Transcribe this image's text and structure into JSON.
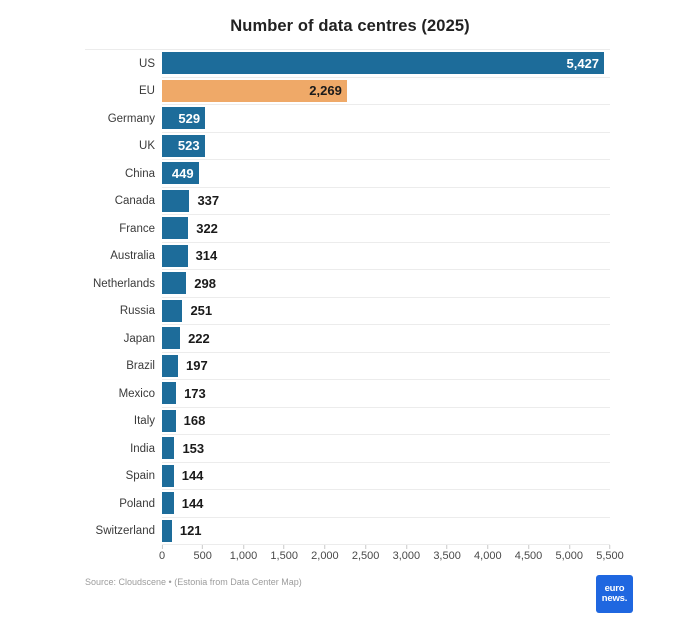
{
  "title": "Number of data centres (2025)",
  "footer": {
    "source": "Source: Cloudscene • (Estonia from Data Center Map)",
    "logo": {
      "line1": "euro",
      "line2": "news.",
      "bg_color": "#1f67e0",
      "text_color": "#ffffff"
    }
  },
  "colors": {
    "bar_default": "#1d6c9a",
    "bar_highlight": "#efa968",
    "inside_label_on_blue": "#ffffff",
    "inside_label_on_orange": "#1a1a1a",
    "outside_label": "#1a1a1a",
    "gridline": "#ececec",
    "tick_mark": "#c9c9c9",
    "axis_text": "#494949",
    "category_text": "#3a3a3a",
    "title_text": "#222222",
    "source_text": "#9c9c9c"
  },
  "chart_data": {
    "type": "bar",
    "orientation": "horizontal",
    "title": "Number of data centres (2025)",
    "categories": [
      "US",
      "EU",
      "Germany",
      "UK",
      "China",
      "Canada",
      "France",
      "Australia",
      "Netherlands",
      "Russia",
      "Japan",
      "Brazil",
      "Mexico",
      "Italy",
      "India",
      "Spain",
      "Poland",
      "Switzerland"
    ],
    "values": [
      5427,
      2269,
      529,
      523,
      449,
      337,
      322,
      314,
      298,
      251,
      222,
      197,
      173,
      168,
      153,
      144,
      144,
      121
    ],
    "value_labels": [
      "5,427",
      "2,269",
      "529",
      "523",
      "449",
      "337",
      "322",
      "314",
      "298",
      "251",
      "222",
      "197",
      "173",
      "168",
      "153",
      "144",
      "144",
      "121"
    ],
    "bar_colors": [
      "#1d6c9a",
      "#efa968",
      "#1d6c9a",
      "#1d6c9a",
      "#1d6c9a",
      "#1d6c9a",
      "#1d6c9a",
      "#1d6c9a",
      "#1d6c9a",
      "#1d6c9a",
      "#1d6c9a",
      "#1d6c9a",
      "#1d6c9a",
      "#1d6c9a",
      "#1d6c9a",
      "#1d6c9a",
      "#1d6c9a",
      "#1d6c9a"
    ],
    "value_label_placement": [
      "inside",
      "inside",
      "inside",
      "inside",
      "inside",
      "outside",
      "outside",
      "outside",
      "outside",
      "outside",
      "outside",
      "outside",
      "outside",
      "outside",
      "outside",
      "outside",
      "outside",
      "outside"
    ],
    "value_label_colors": [
      "#ffffff",
      "#1a1a1a",
      "#ffffff",
      "#ffffff",
      "#ffffff",
      "#1a1a1a",
      "#1a1a1a",
      "#1a1a1a",
      "#1a1a1a",
      "#1a1a1a",
      "#1a1a1a",
      "#1a1a1a",
      "#1a1a1a",
      "#1a1a1a",
      "#1a1a1a",
      "#1a1a1a",
      "#1a1a1a",
      "#1a1a1a"
    ],
    "xlabel": "",
    "ylabel": "",
    "xlim": [
      0,
      5500
    ],
    "x_tick_labels": [
      "0",
      "500",
      "1,000",
      "1,500",
      "2,000",
      "2,500",
      "3,000",
      "3,500",
      "4,000",
      "4,500",
      "5,000",
      "5,500"
    ],
    "grid": "light horizontal row-separator lines, no vertical gridlines",
    "legend": "none",
    "source": "Source: Cloudscene • (Estonia from Data Center Map)"
  }
}
